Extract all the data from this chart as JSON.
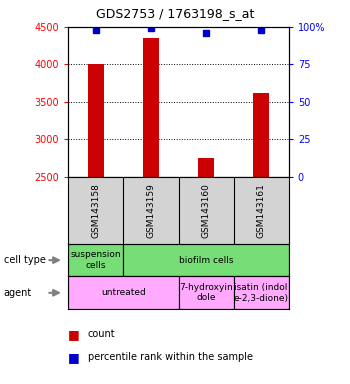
{
  "title": "GDS2753 / 1763198_s_at",
  "samples": [
    "GSM143158",
    "GSM143159",
    "GSM143160",
    "GSM143161"
  ],
  "counts": [
    4000,
    4350,
    2750,
    3620
  ],
  "percentiles": [
    98,
    99,
    96,
    98
  ],
  "count_color": "#cc0000",
  "percentile_color": "#0000cc",
  "left_ylim": [
    2500,
    4500
  ],
  "right_ylim": [
    0,
    100
  ],
  "left_yticks": [
    2500,
    3000,
    3500,
    4000,
    4500
  ],
  "right_yticks": [
    0,
    25,
    50,
    75,
    100
  ],
  "right_yticklabels": [
    "0",
    "25",
    "50",
    "75",
    "100%"
  ],
  "bg_color": "#d3d3d3",
  "cell_type_green": "#77dd77",
  "agent_pink": "#ffaaff",
  "grid_yticks": [
    3000,
    3500,
    4000
  ]
}
